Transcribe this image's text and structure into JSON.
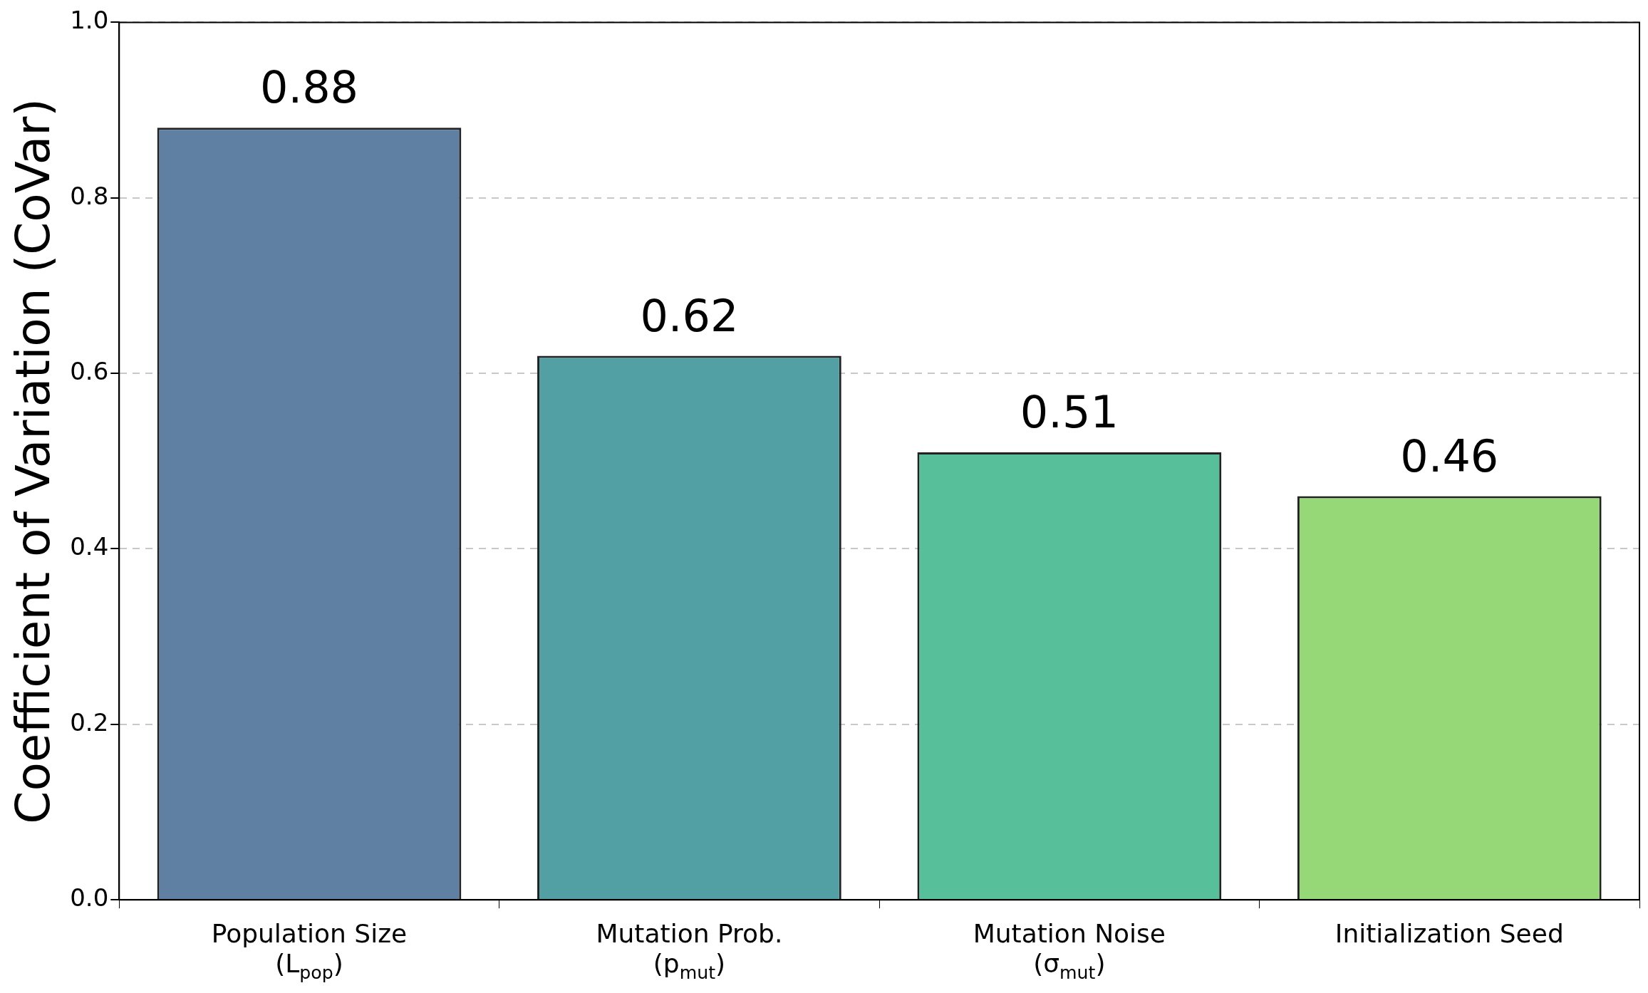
{
  "chart_data": {
    "type": "bar",
    "ylabel": "Coefficient of Variation (CoVar)",
    "categories": [
      "Population Size\n(L$_{pop}$)",
      "Mutation Prob.\n(p$_{mut}$)",
      "Mutation Noise\n(σ$_{mut}$)",
      "Initialization Seed"
    ],
    "values": [
      0.88,
      0.62,
      0.51,
      0.46
    ],
    "colors": [
      "#5f7fa3",
      "#52a0a3",
      "#57bf9a",
      "#96d877"
    ],
    "ylim": [
      0,
      1.0
    ],
    "yticks": [
      {
        "value": 0,
        "label": "0.0"
      },
      {
        "value": 0.2,
        "label": "0.2"
      },
      {
        "value": 0.4,
        "label": "0.4"
      },
      {
        "value": 0.6,
        "label": "0.6"
      },
      {
        "value": 0.8,
        "label": "0.8"
      },
      {
        "value": 1,
        "label": "1.0"
      }
    ],
    "grid": "y",
    "data_labels": true,
    "legend": false
  }
}
